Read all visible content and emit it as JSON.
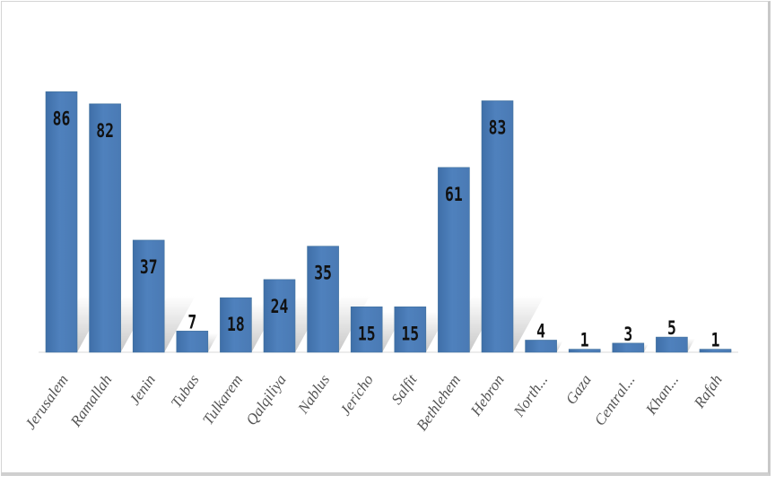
{
  "chart_data": {
    "type": "bar",
    "categories": [
      "Jerusalem",
      "Ramallah",
      "Jenin",
      "Tubas",
      "Tulkarem",
      "Qalqiliya",
      "Nablus",
      "Jericho",
      "Salfit",
      "Bethlehem",
      "Hebron",
      "North...",
      "Gaza",
      "Central...",
      "Khan...",
      "Rafah"
    ],
    "values": [
      86,
      82,
      37,
      7,
      18,
      24,
      35,
      15,
      15,
      61,
      83,
      4,
      1,
      3,
      5,
      1
    ],
    "title": "",
    "xlabel": "",
    "ylabel": "",
    "ylim": [
      0,
      100
    ],
    "grid": false,
    "legend": "none",
    "bar_color": "#4f81bd"
  }
}
